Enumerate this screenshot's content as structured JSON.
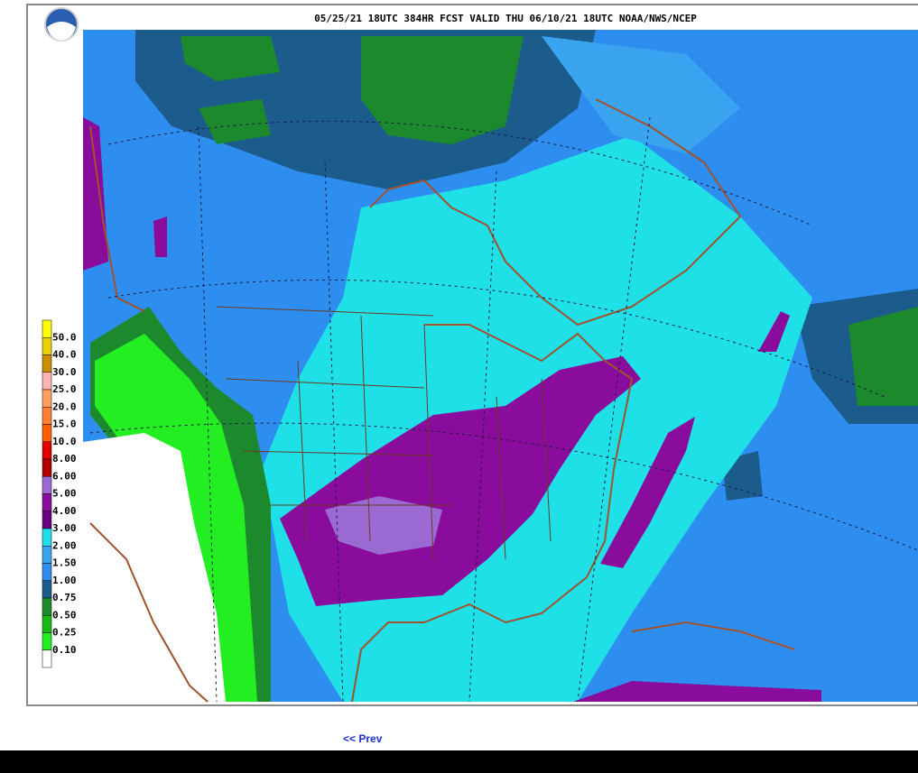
{
  "header": {
    "title": "05/25/21 18UTC 384HR FCST VALID THU 06/10/21 18UTC NOAA/NWS/NCEP"
  },
  "legend": {
    "entries": [
      {
        "label": "50.0",
        "color": "#ffff00"
      },
      {
        "label": "40.0",
        "color": "#e8d000"
      },
      {
        "label": "30.0",
        "color": "#c89000"
      },
      {
        "label": "25.0",
        "color": "#ffb4b4"
      },
      {
        "label": "20.0",
        "color": "#ffa060"
      },
      {
        "label": "15.0",
        "color": "#ff8030"
      },
      {
        "label": "10.0",
        "color": "#ff6000"
      },
      {
        "label": "8.00",
        "color": "#e00000"
      },
      {
        "label": "6.00",
        "color": "#b00000"
      },
      {
        "label": "5.00",
        "color": "#9a6ad2"
      },
      {
        "label": "4.00",
        "color": "#8a0c9c"
      },
      {
        "label": "3.00",
        "color": "#660080"
      },
      {
        "label": "2.00",
        "color": "#1fe0e6"
      },
      {
        "label": "1.50",
        "color": "#3aa4f0"
      },
      {
        "label": "1.00",
        "color": "#2e8ef0"
      },
      {
        "label": "0.75",
        "color": "#1b5c8c"
      },
      {
        "label": "0.50",
        "color": "#1c8a2c"
      },
      {
        "label": "0.25",
        "color": "#18b818"
      },
      {
        "label": "0.10",
        "color": "#22ee22"
      }
    ],
    "base_color": "#ffffff"
  },
  "nav": {
    "prev": "<< Prev"
  }
}
